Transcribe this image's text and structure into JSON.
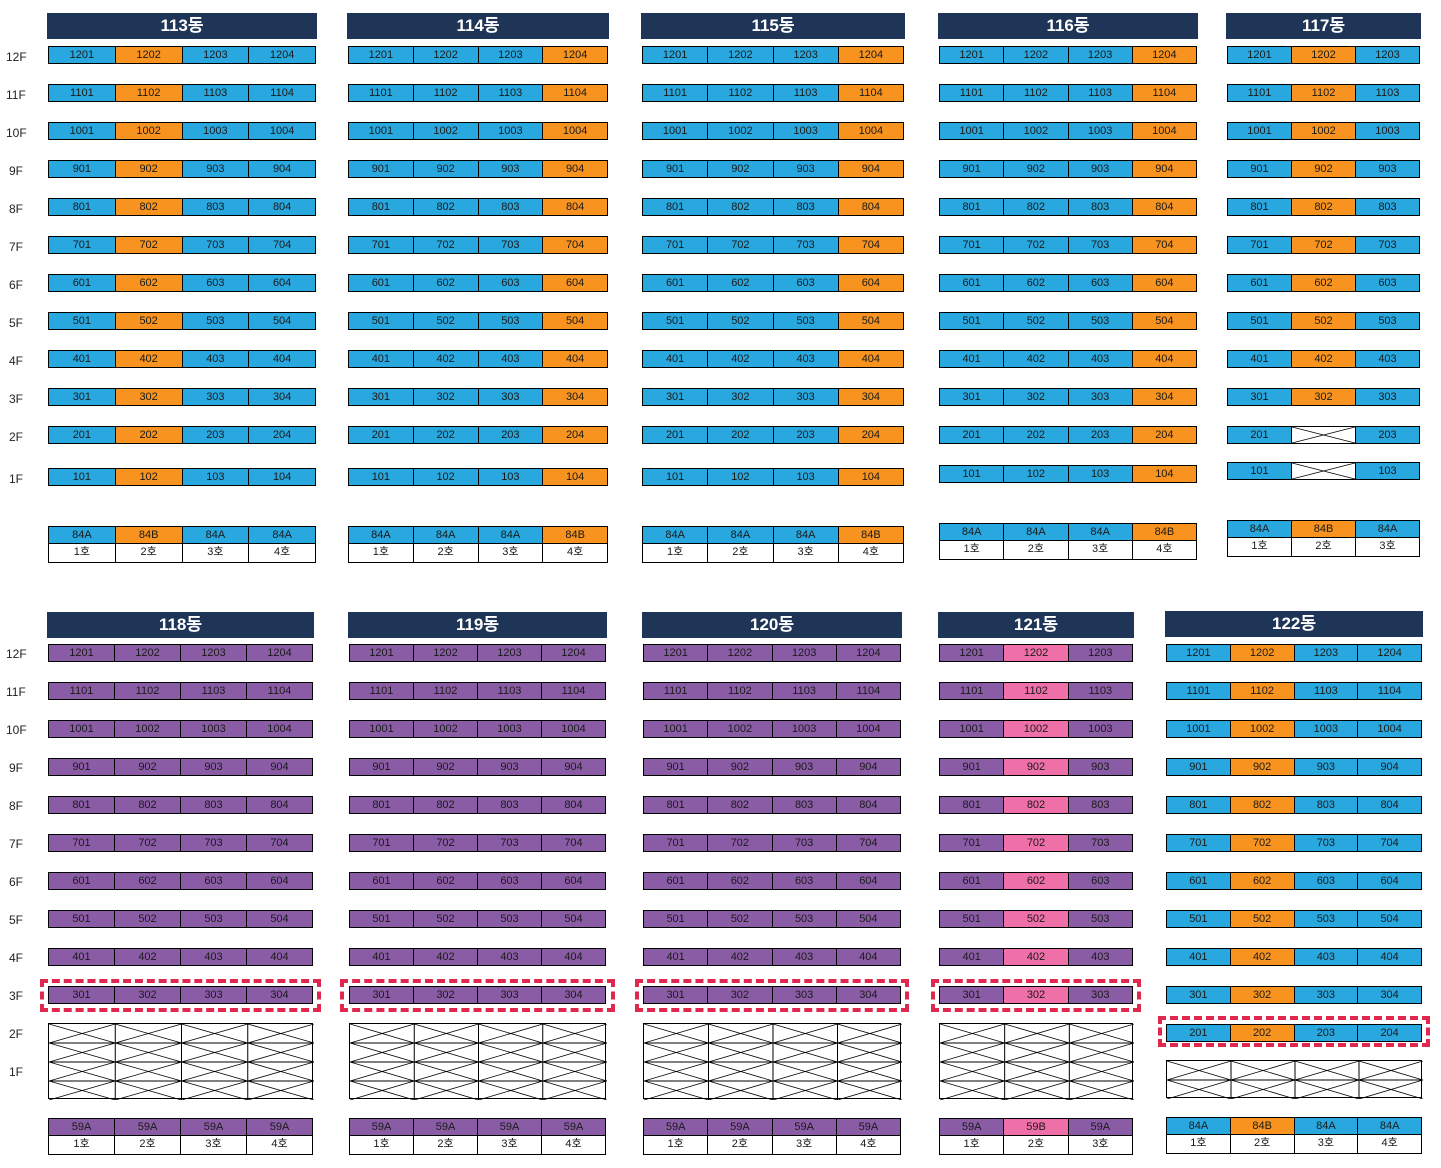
{
  "floor_labels": [
    "12F",
    "11F",
    "10F",
    "9F",
    "8F",
    "7F",
    "6F",
    "5F",
    "4F",
    "3F",
    "2F",
    "1F"
  ],
  "colors": {
    "blue": "#29a8e0",
    "orange": "#f7931e",
    "purple": "#8b5ca6",
    "pink": "#ef6fa8",
    "navy": "#1e3557",
    "highlight": "#e0284f"
  },
  "buildings": [
    {
      "name": "113동",
      "cols": 4,
      "types": [
        "84A",
        "84B",
        "84A",
        "84A"
      ],
      "type_colors": [
        "blue",
        "orange",
        "blue",
        "blue"
      ],
      "ho": [
        "1호",
        "2호",
        "3호",
        "4호"
      ],
      "floors": [
        12,
        11,
        10,
        9,
        8,
        7,
        6,
        5,
        4,
        3,
        2,
        1
      ],
      "col_colors": [
        "blue",
        "orange",
        "blue",
        "blue"
      ]
    },
    {
      "name": "114동",
      "cols": 4,
      "types": [
        "84A",
        "84A",
        "84A",
        "84B"
      ],
      "type_colors": [
        "blue",
        "blue",
        "blue",
        "orange"
      ],
      "ho": [
        "1호",
        "2호",
        "3호",
        "4호"
      ],
      "floors": [
        12,
        11,
        10,
        9,
        8,
        7,
        6,
        5,
        4,
        3,
        2,
        1
      ],
      "col_colors": [
        "blue",
        "blue",
        "blue",
        "orange"
      ]
    },
    {
      "name": "115동",
      "cols": 4,
      "types": [
        "84A",
        "84A",
        "84A",
        "84B"
      ],
      "type_colors": [
        "blue",
        "blue",
        "blue",
        "orange"
      ],
      "ho": [
        "1호",
        "2호",
        "3호",
        "4호"
      ],
      "floors": [
        12,
        11,
        10,
        9,
        8,
        7,
        6,
        5,
        4,
        3,
        2,
        1
      ],
      "col_colors": [
        "blue",
        "blue",
        "blue",
        "orange"
      ]
    },
    {
      "name": "116동",
      "cols": 4,
      "types": [
        "84A",
        "84A",
        "84A",
        "84B"
      ],
      "type_colors": [
        "blue",
        "blue",
        "blue",
        "orange"
      ],
      "ho": [
        "1호",
        "2호",
        "3호",
        "4호"
      ],
      "floors": [
        12,
        11,
        10,
        9,
        8,
        7,
        6,
        5,
        4,
        3,
        2,
        1
      ],
      "col_colors": [
        "blue",
        "blue",
        "blue",
        "orange"
      ]
    },
    {
      "name": "117동",
      "cols": 3,
      "types": [
        "84A",
        "84B",
        "84A"
      ],
      "type_colors": [
        "blue",
        "orange",
        "blue"
      ],
      "ho": [
        "1호",
        "2호",
        "3호"
      ],
      "floors": [
        12,
        11,
        10,
        9,
        8,
        7,
        6,
        5,
        4,
        3,
        2,
        1
      ],
      "col_colors": [
        "blue",
        "orange",
        "blue"
      ],
      "empty_cells": [
        "2-1",
        "1-1"
      ]
    },
    {
      "name": "118동",
      "cols": 4,
      "types": [
        "59A",
        "59A",
        "59A",
        "59A"
      ],
      "type_colors": [
        "purple",
        "purple",
        "purple",
        "purple"
      ],
      "ho": [
        "1호",
        "2호",
        "3호",
        "4호"
      ],
      "floors": [
        12,
        11,
        10,
        9,
        8,
        7,
        6,
        5,
        4,
        3
      ],
      "col_colors": [
        "purple",
        "purple",
        "purple",
        "purple"
      ]
    },
    {
      "name": "119동",
      "cols": 4,
      "types": [
        "59A",
        "59A",
        "59A",
        "59A"
      ],
      "type_colors": [
        "purple",
        "purple",
        "purple",
        "purple"
      ],
      "ho": [
        "1호",
        "2호",
        "3호",
        "4호"
      ],
      "floors": [
        12,
        11,
        10,
        9,
        8,
        7,
        6,
        5,
        4,
        3
      ],
      "col_colors": [
        "purple",
        "purple",
        "purple",
        "purple"
      ]
    },
    {
      "name": "120동",
      "cols": 4,
      "types": [
        "59A",
        "59A",
        "59A",
        "59A"
      ],
      "type_colors": [
        "purple",
        "purple",
        "purple",
        "purple"
      ],
      "ho": [
        "1호",
        "2호",
        "3호",
        "4호"
      ],
      "floors": [
        12,
        11,
        10,
        9,
        8,
        7,
        6,
        5,
        4,
        3
      ],
      "col_colors": [
        "purple",
        "purple",
        "purple",
        "purple"
      ]
    },
    {
      "name": "121동",
      "cols": 3,
      "types": [
        "59A",
        "59B",
        "59A"
      ],
      "type_colors": [
        "purple",
        "pink",
        "purple"
      ],
      "ho": [
        "1호",
        "2호",
        "3호"
      ],
      "floors": [
        12,
        11,
        10,
        9,
        8,
        7,
        6,
        5,
        4,
        3
      ],
      "col_colors": [
        "purple",
        "pink",
        "purple"
      ]
    },
    {
      "name": "122동",
      "cols": 4,
      "types": [
        "84A",
        "84B",
        "84A",
        "84A"
      ],
      "type_colors": [
        "blue",
        "orange",
        "blue",
        "blue"
      ],
      "ho": [
        "1호",
        "2호",
        "3호",
        "4호"
      ],
      "floors": [
        12,
        11,
        10,
        9,
        8,
        7,
        6,
        5,
        4,
        3,
        2
      ],
      "col_colors": [
        "blue",
        "orange",
        "blue",
        "blue"
      ]
    }
  ]
}
